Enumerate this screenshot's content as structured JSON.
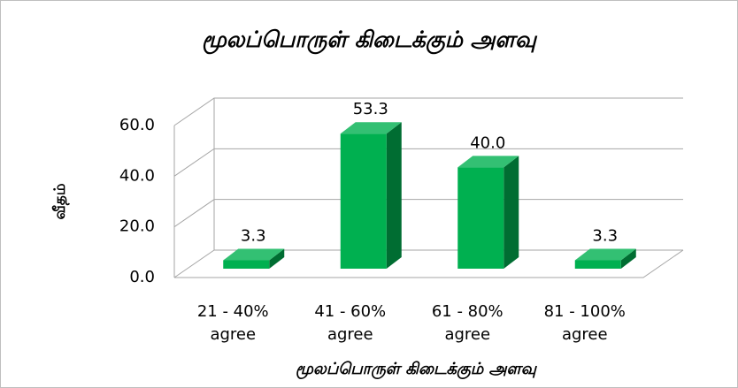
{
  "chart_data": {
    "type": "bar3d",
    "title": "மூலப்பொருள் கிடைக்கும் அளவு",
    "y_label": "வீதம்",
    "x_label": "மூலப்பொருள் கிடைக்கும் அளவு",
    "categories": [
      "21 - 40% agree",
      "41 - 60% agree",
      "61 - 80% agree",
      "81 - 100% agree"
    ],
    "values": [
      3.3,
      53.3,
      40.0,
      3.3
    ],
    "value_labels": [
      "3.3",
      "53.3",
      "40.0",
      "3.3"
    ],
    "color": "#00b050",
    "ylim": [
      0,
      60
    ],
    "yticks": [
      {
        "value": 0,
        "label": "0.0"
      },
      {
        "value": 20,
        "label": "20.0"
      },
      {
        "value": 40,
        "label": "40.0"
      },
      {
        "value": 60,
        "label": "60.0"
      }
    ],
    "grid": true
  }
}
